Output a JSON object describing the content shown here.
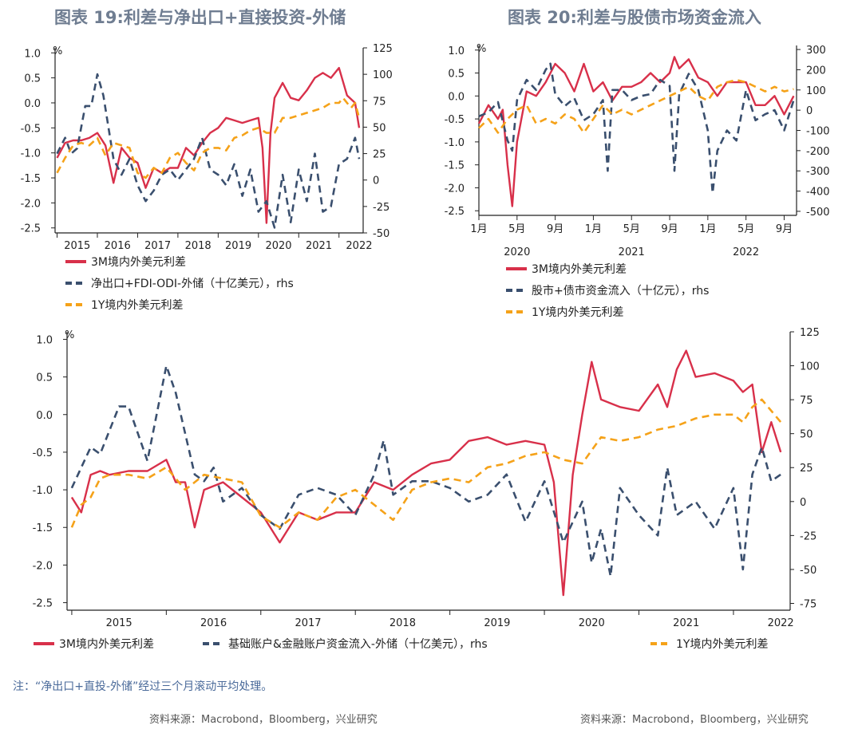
{
  "titles": {
    "left": "图表 19:利差与净出口+直接投资-外储",
    "right": "图表 20:利差与股债市场资金流入"
  },
  "note": "注：“净出口+直投-外储”经过三个月滚动平均处理。",
  "sources": {
    "left": "资料来源：Macrobond，Bloomberg，兴业研究",
    "right": "资料来源：Macrobond，Bloomberg，兴业研究"
  },
  "colors": {
    "red": "#d8304a",
    "navy": "#3a4f6e",
    "orange": "#f5a219"
  },
  "chart_data": [
    {
      "id": "chart19",
      "type": "line",
      "title": "图表 19:利差与净出口+直接投资-外储",
      "y_unit": "%",
      "ylim": [
        -2.6,
        1.1
      ],
      "y_ticks": [
        "1.0",
        "0.5",
        "0.0",
        "-0.5",
        "-1.0",
        "-1.5",
        "-2.0",
        "-2.5"
      ],
      "y2lim": [
        -50,
        125
      ],
      "y2_ticks": [
        "125",
        "100",
        "75",
        "50",
        "25",
        "0",
        "-25",
        "-50"
      ],
      "x_ticks": [
        "2015",
        "2016",
        "2017",
        "2018",
        "2019",
        "2020",
        "2021",
        "2022"
      ],
      "x_start": 2014.95,
      "x_end": 2022.6,
      "legend": [
        "3M境内外美元利差",
        "净出口+FDI-ODI-外储（十亿美元），rhs",
        "1Y境内外美元利差"
      ],
      "series": [
        {
          "name": "3M境内外美元利差",
          "axis": "left",
          "style": "solid",
          "x": [
            2015.0,
            2015.2,
            2015.4,
            2015.6,
            2015.8,
            2016.0,
            2016.2,
            2016.4,
            2016.6,
            2016.8,
            2017.0,
            2017.2,
            2017.4,
            2017.6,
            2017.8,
            2018.0,
            2018.2,
            2018.4,
            2018.6,
            2018.8,
            2019.0,
            2019.2,
            2019.4,
            2019.6,
            2019.8,
            2020.0,
            2020.1,
            2020.2,
            2020.3,
            2020.4,
            2020.6,
            2020.8,
            2021.0,
            2021.2,
            2021.4,
            2021.6,
            2021.8,
            2022.0,
            2022.2,
            2022.4,
            2022.5
          ],
          "values": [
            -1.1,
            -0.8,
            -0.75,
            -0.75,
            -0.7,
            -0.6,
            -0.85,
            -1.6,
            -0.9,
            -1.1,
            -1.2,
            -1.7,
            -1.3,
            -1.4,
            -1.3,
            -1.3,
            -0.9,
            -1.05,
            -0.8,
            -0.6,
            -0.5,
            -0.3,
            -0.35,
            -0.4,
            -0.35,
            -0.3,
            -0.9,
            -2.4,
            -0.6,
            0.1,
            0.4,
            0.1,
            0.05,
            0.25,
            0.5,
            0.6,
            0.5,
            0.7,
            0.15,
            0.0,
            -0.5
          ]
        },
        {
          "name": "净出口+FDI-ODI-外储（十亿美元），rhs",
          "axis": "right",
          "style": "dashed",
          "x": [
            2015.0,
            2015.2,
            2015.35,
            2015.5,
            2015.7,
            2015.85,
            2016.0,
            2016.15,
            2016.4,
            2016.6,
            2016.8,
            2017.0,
            2017.2,
            2017.4,
            2017.6,
            2017.8,
            2018.0,
            2018.2,
            2018.4,
            2018.6,
            2018.8,
            2019.0,
            2019.2,
            2019.4,
            2019.6,
            2019.8,
            2020.0,
            2020.2,
            2020.4,
            2020.6,
            2020.8,
            2021.0,
            2021.2,
            2021.4,
            2021.6,
            2021.8,
            2022.0,
            2022.2,
            2022.4,
            2022.5
          ],
          "values": [
            25,
            40,
            25,
            30,
            70,
            70,
            100,
            80,
            20,
            5,
            20,
            -5,
            -20,
            -10,
            5,
            10,
            0,
            10,
            20,
            40,
            10,
            5,
            -5,
            15,
            -15,
            10,
            -30,
            -20,
            -45,
            5,
            -40,
            10,
            -20,
            25,
            -30,
            -25,
            15,
            20,
            40,
            20
          ]
        },
        {
          "name": "1Y境内外美元利差",
          "axis": "left",
          "style": "dashed",
          "x": [
            2015.0,
            2015.2,
            2015.4,
            2015.6,
            2015.8,
            2016.0,
            2016.2,
            2016.4,
            2016.6,
            2016.8,
            2017.0,
            2017.2,
            2017.4,
            2017.6,
            2017.8,
            2018.0,
            2018.2,
            2018.4,
            2018.6,
            2018.8,
            2019.0,
            2019.2,
            2019.4,
            2019.6,
            2019.8,
            2020.0,
            2020.2,
            2020.4,
            2020.6,
            2020.8,
            2021.0,
            2021.2,
            2021.4,
            2021.6,
            2021.8,
            2022.0,
            2022.1,
            2022.2,
            2022.3,
            2022.4,
            2022.5
          ],
          "values": [
            -1.4,
            -1.1,
            -0.85,
            -0.8,
            -0.85,
            -0.7,
            -1.05,
            -0.8,
            -0.85,
            -0.9,
            -1.4,
            -1.5,
            -1.3,
            -1.4,
            -1.1,
            -1.0,
            -1.2,
            -1.35,
            -1.0,
            -0.9,
            -0.9,
            -0.95,
            -0.7,
            -0.65,
            -0.55,
            -0.5,
            -0.6,
            -0.6,
            -0.3,
            -0.3,
            -0.25,
            -0.2,
            -0.15,
            -0.1,
            0.0,
            0.0,
            0.1,
            0.0,
            -0.1,
            0.0,
            -0.3
          ]
        }
      ]
    },
    {
      "id": "chart20",
      "type": "line",
      "title": "图表 20:利差与股债市场资金流入",
      "y_unit": "%",
      "ylim": [
        -2.6,
        1.1
      ],
      "y_ticks": [
        "1.0",
        "0.5",
        "0.0",
        "-0.5",
        "-1.0",
        "-1.5",
        "-2.0",
        "-2.5"
      ],
      "y2lim": [
        -520,
        320
      ],
      "y2_ticks": [
        "300",
        "200",
        "100",
        "0",
        "-100",
        "-200",
        "-300",
        "-400",
        "-500"
      ],
      "x_ticks": [
        "1月",
        "5月",
        "9月",
        "1月",
        "5月",
        "9月",
        "1月",
        "5月",
        "9月"
      ],
      "x_tick_positions": [
        0,
        4,
        8,
        12,
        16,
        20,
        24,
        28,
        32
      ],
      "year_labels": [
        "2020",
        "2021",
        "2022"
      ],
      "year_positions": [
        4,
        16,
        28
      ],
      "x_start": 0,
      "x_end": 33.3,
      "legend": [
        "3M境内外美元利差",
        "股市+债市资金流入（十亿元），rhs",
        "1Y境内外美元利差"
      ],
      "series": [
        {
          "name": "3M境内外美元利差",
          "axis": "left",
          "style": "solid",
          "x": [
            0,
            1,
            2,
            2.5,
            3,
            3.5,
            4,
            5,
            6,
            7,
            8,
            9,
            10,
            11,
            12,
            13,
            14,
            15,
            16,
            17,
            18,
            19,
            20,
            20.5,
            21,
            22,
            23,
            24,
            25,
            26,
            27,
            28,
            29,
            30,
            31,
            32,
            33
          ],
          "values": [
            -0.6,
            -0.2,
            -0.5,
            -0.3,
            -1.5,
            -2.4,
            -1.0,
            0.1,
            0.0,
            0.3,
            0.7,
            0.5,
            0.1,
            0.7,
            0.1,
            0.3,
            -0.1,
            0.2,
            0.2,
            0.3,
            0.5,
            0.3,
            0.5,
            0.85,
            0.6,
            0.8,
            0.4,
            0.3,
            0.0,
            0.3,
            0.3,
            0.3,
            -0.2,
            -0.2,
            0.0,
            -0.4,
            0.0
          ]
        },
        {
          "name": "股市+债市资金流入（十亿元），rhs",
          "axis": "right",
          "style": "dashed",
          "x": [
            0,
            1,
            2,
            3,
            3.5,
            4,
            5,
            6,
            7,
            7.5,
            8,
            9,
            10,
            11,
            12,
            13,
            13.5,
            14,
            15,
            16,
            17,
            18,
            19,
            20,
            20.5,
            21,
            22,
            23,
            24,
            24.5,
            25,
            26,
            27,
            28,
            29,
            30,
            31,
            32,
            33
          ],
          "values": [
            -30,
            -10,
            40,
            -150,
            -200,
            50,
            150,
            100,
            200,
            230,
            80,
            20,
            60,
            -50,
            -20,
            50,
            -300,
            100,
            100,
            50,
            70,
            80,
            150,
            120,
            -300,
            80,
            180,
            100,
            -100,
            -410,
            -200,
            -100,
            -150,
            100,
            -50,
            -20,
            0,
            -100,
            50
          ]
        },
        {
          "name": "1Y境内外美元利差",
          "axis": "left",
          "style": "dashed",
          "x": [
            0,
            1,
            2,
            3,
            4,
            5,
            6,
            7,
            8,
            9,
            10,
            11,
            12,
            13,
            14,
            15,
            16,
            17,
            18,
            19,
            20,
            21,
            22,
            23,
            24,
            25,
            26,
            27,
            28,
            29,
            30,
            31,
            32,
            33
          ],
          "values": [
            -0.7,
            -0.5,
            -0.8,
            -0.5,
            -0.3,
            -0.2,
            -0.6,
            -0.5,
            -0.6,
            -0.4,
            -0.5,
            -0.8,
            -0.5,
            -0.2,
            -0.4,
            -0.3,
            -0.4,
            -0.3,
            -0.2,
            -0.1,
            0.0,
            0.1,
            0.2,
            0.0,
            -0.1,
            0.2,
            0.3,
            0.35,
            0.3,
            0.2,
            0.1,
            0.2,
            0.1,
            0.15
          ]
        }
      ]
    },
    {
      "id": "chart-bottom",
      "type": "line",
      "title": "",
      "y_unit": "%",
      "ylim": [
        -2.6,
        1.1
      ],
      "y_ticks": [
        "1.0",
        "0.5",
        "0.0",
        "-0.5",
        "-1.0",
        "-1.5",
        "-2.0",
        "-2.5"
      ],
      "y2lim": [
        -80,
        125
      ],
      "y2_ticks": [
        "125",
        "100",
        "75",
        "50",
        "25",
        "0",
        "-25",
        "-50",
        "-75"
      ],
      "x_ticks": [
        "2015",
        "2016",
        "2017",
        "2018",
        "2019",
        "2020",
        "2021",
        "2022"
      ],
      "x_start": 2014.95,
      "x_end": 2022.6,
      "legend": [
        "3M境内外美元利差",
        "基础账户&金融账户资金流入-外储（十亿美元），rhs",
        "1Y境内外美元利差"
      ],
      "series": [
        {
          "name": "3M境内外美元利差",
          "axis": "left",
          "style": "solid",
          "x": [
            2015.0,
            2015.1,
            2015.2,
            2015.3,
            2015.4,
            2015.6,
            2015.8,
            2016.0,
            2016.1,
            2016.2,
            2016.3,
            2016.4,
            2016.6,
            2016.8,
            2017.0,
            2017.2,
            2017.4,
            2017.6,
            2017.8,
            2018.0,
            2018.2,
            2018.4,
            2018.6,
            2018.8,
            2019.0,
            2019.2,
            2019.4,
            2019.6,
            2019.8,
            2020.0,
            2020.1,
            2020.2,
            2020.3,
            2020.4,
            2020.5,
            2020.6,
            2020.8,
            2021.0,
            2021.2,
            2021.3,
            2021.4,
            2021.5,
            2021.6,
            2021.8,
            2022.0,
            2022.1,
            2022.2,
            2022.3,
            2022.4,
            2022.5
          ],
          "values": [
            -1.1,
            -1.3,
            -0.8,
            -0.75,
            -0.8,
            -0.75,
            -0.75,
            -0.6,
            -0.9,
            -0.9,
            -1.5,
            -1.0,
            -0.9,
            -1.1,
            -1.3,
            -1.7,
            -1.3,
            -1.4,
            -1.3,
            -1.3,
            -0.9,
            -1.0,
            -0.8,
            -0.65,
            -0.6,
            -0.35,
            -0.3,
            -0.4,
            -0.35,
            -0.4,
            -0.9,
            -2.4,
            -0.8,
            0.0,
            0.7,
            0.2,
            0.1,
            0.05,
            0.4,
            0.1,
            0.6,
            0.85,
            0.5,
            0.55,
            0.45,
            0.3,
            0.4,
            -0.5,
            -0.1,
            -0.5
          ]
        },
        {
          "name": "基础账户&金融账户资金流入-外储（十亿美元），rhs",
          "axis": "right",
          "style": "dashed",
          "x": [
            2015.0,
            2015.2,
            2015.3,
            2015.5,
            2015.6,
            2015.8,
            2016.0,
            2016.1,
            2016.3,
            2016.4,
            2016.5,
            2016.6,
            2016.8,
            2017.0,
            2017.2,
            2017.4,
            2017.6,
            2017.8,
            2018.0,
            2018.2,
            2018.3,
            2018.4,
            2018.6,
            2018.8,
            2019.0,
            2019.2,
            2019.4,
            2019.6,
            2019.8,
            2020.0,
            2020.2,
            2020.4,
            2020.5,
            2020.6,
            2020.7,
            2020.8,
            2021.0,
            2021.2,
            2021.3,
            2021.4,
            2021.6,
            2021.8,
            2022.0,
            2022.1,
            2022.2,
            2022.3,
            2022.4,
            2022.5
          ],
          "values": [
            10,
            40,
            35,
            70,
            70,
            30,
            100,
            80,
            20,
            15,
            25,
            0,
            10,
            -10,
            -20,
            5,
            10,
            5,
            -10,
            20,
            45,
            5,
            15,
            15,
            10,
            0,
            5,
            20,
            -15,
            15,
            -30,
            0,
            -45,
            -20,
            -55,
            10,
            -10,
            -25,
            25,
            -10,
            0,
            -20,
            10,
            -50,
            20,
            40,
            15,
            20
          ]
        },
        {
          "name": "1Y境内外美元利差",
          "axis": "left",
          "style": "dashed",
          "x": [
            2015.0,
            2015.1,
            2015.2,
            2015.3,
            2015.4,
            2015.6,
            2015.8,
            2016.0,
            2016.2,
            2016.4,
            2016.6,
            2016.8,
            2017.0,
            2017.2,
            2017.4,
            2017.6,
            2017.8,
            2018.0,
            2018.2,
            2018.4,
            2018.6,
            2018.8,
            2019.0,
            2019.2,
            2019.4,
            2019.6,
            2019.8,
            2020.0,
            2020.2,
            2020.4,
            2020.6,
            2020.8,
            2021.0,
            2021.2,
            2021.4,
            2021.6,
            2021.8,
            2022.0,
            2022.1,
            2022.2,
            2022.3,
            2022.4,
            2022.5
          ],
          "values": [
            -1.5,
            -1.2,
            -1.1,
            -0.85,
            -0.8,
            -0.8,
            -0.85,
            -0.7,
            -1.0,
            -0.8,
            -0.85,
            -0.9,
            -1.35,
            -1.5,
            -1.3,
            -1.4,
            -1.1,
            -1.0,
            -1.2,
            -1.4,
            -1.0,
            -0.9,
            -0.85,
            -0.9,
            -0.7,
            -0.65,
            -0.55,
            -0.5,
            -0.6,
            -0.65,
            -0.3,
            -0.35,
            -0.3,
            -0.2,
            -0.15,
            -0.05,
            0.0,
            0.0,
            -0.1,
            0.1,
            0.2,
            0.05,
            -0.1
          ]
        }
      ]
    }
  ]
}
